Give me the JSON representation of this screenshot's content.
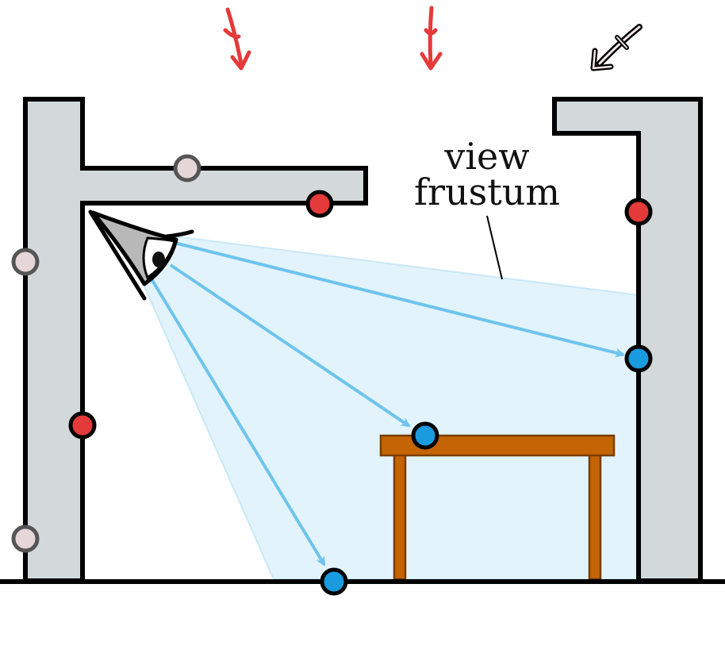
{
  "diagram": {
    "label_line1": "view",
    "label_line2": "frustum",
    "colors": {
      "wall_fill": "#d3d8da",
      "outline": "#000000",
      "frustum_fill": "#e2f3fb",
      "frustum_edge": "#bfe3f5",
      "ray": "#6ec4ec",
      "point_red": "#e53a3a",
      "point_gray": "#e5d7d7",
      "point_blue": "#1a9be0",
      "table": "#c56405",
      "table_edge": "#7a3d00",
      "incoming_red": "#e53a3a",
      "incoming_pale": "#f3e7e7"
    },
    "icons": [
      "eye-icon",
      "incoming-arrow-icon"
    ]
  }
}
